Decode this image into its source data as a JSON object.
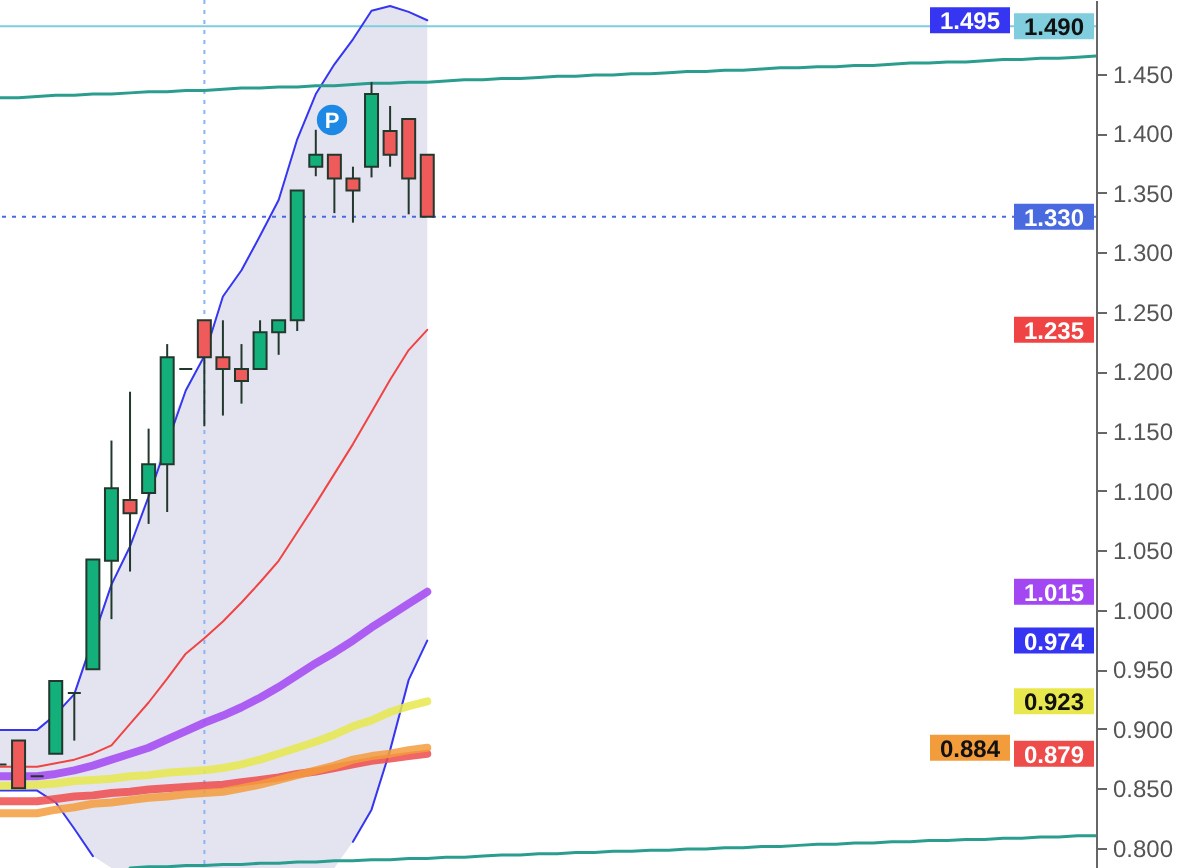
{
  "chart_data": {
    "type": "candlestick",
    "categories": [
      null,
      null,
      null,
      null,
      null,
      null,
      null,
      null,
      null,
      null,
      null,
      null,
      null,
      null,
      null,
      null,
      null,
      null,
      null,
      null,
      null,
      null,
      null,
      null,
      null,
      null,
      null,
      null,
      null,
      null,
      null,
      null,
      null,
      null,
      null,
      null,
      null,
      null,
      null,
      null,
      null,
      null,
      null,
      null,
      null,
      null,
      null,
      null,
      null,
      null,
      null,
      null,
      null,
      null,
      null,
      null,
      null,
      null,
      null,
      null
    ],
    "ohlc": [
      [
        0.87,
        0.87,
        0.87,
        0.87
      ],
      [
        0.89,
        0.89,
        0.85,
        0.85
      ],
      [
        0.86,
        0.86,
        0.86,
        0.86
      ],
      [
        0.879,
        0.94,
        0.879,
        0.94
      ],
      [
        0.93,
        0.93,
        0.89,
        0.93
      ],
      [
        0.95,
        1.042,
        0.95,
        1.042
      ],
      [
        1.041,
        1.142,
        0.992,
        1.102
      ],
      [
        1.092,
        1.183,
        1.032,
        1.081
      ],
      [
        1.098,
        1.152,
        1.072,
        1.122
      ],
      [
        1.122,
        1.223,
        1.082,
        1.212
      ],
      [
        1.202,
        1.202,
        1.202,
        1.202
      ],
      [
        1.243,
        1.243,
        1.154,
        1.212
      ],
      [
        1.212,
        1.243,
        1.163,
        1.202
      ],
      [
        1.202,
        1.223,
        1.173,
        1.192
      ],
      [
        1.202,
        1.243,
        1.202,
        1.233
      ],
      [
        1.233,
        1.243,
        1.214,
        1.243
      ],
      [
        1.243,
        1.352,
        1.234,
        1.352
      ],
      [
        1.372,
        1.403,
        1.364,
        1.382
      ],
      [
        1.382,
        1.382,
        1.333,
        1.362
      ],
      [
        1.362,
        1.372,
        1.325,
        1.352
      ],
      [
        1.372,
        1.443,
        1.363,
        1.433
      ],
      [
        1.402,
        1.423,
        1.372,
        1.382
      ],
      [
        1.412,
        1.412,
        1.332,
        1.362
      ],
      [
        1.382,
        1.382,
        1.33,
        1.33
      ],
      null,
      null,
      null,
      null,
      null,
      null,
      null,
      null,
      null,
      null,
      null,
      null,
      null,
      null,
      null,
      null,
      null,
      null,
      null,
      null,
      null,
      null,
      null,
      null,
      null,
      null,
      null,
      null,
      null,
      null,
      null,
      null,
      null,
      null,
      null,
      null
    ],
    "colors": [
      "#22382c",
      "#ef5b5b",
      "#22382c",
      "#14b07c",
      "#22382c",
      "#14b07c",
      "#14b07c",
      "#ef5b5b",
      "#14b07c",
      "#14b07c",
      "#22382c",
      "#ef5b5b",
      "#ef5b5b",
      "#ef5b5b",
      "#14b07c",
      "#14b07c",
      "#14b07c",
      "#14b07c",
      "#ef5b5b",
      "#ef5b5b",
      "#14b07c",
      "#ef5b5b",
      "#ef5b5b",
      "#ef5b5b",
      null,
      null,
      null,
      null,
      null,
      null,
      null,
      null,
      null,
      null,
      null,
      null,
      null,
      null,
      null,
      null,
      null,
      null,
      null,
      null,
      null,
      null,
      null,
      null,
      null,
      null,
      null,
      null,
      null,
      null,
      null,
      null,
      null,
      null,
      null,
      null
    ],
    "series": [
      {
        "type": "line",
        "color": "#3535f2",
        "values": [
          0.899,
          0.899,
          0.899,
          0.912,
          0.929,
          null,
          1.021,
          1.053,
          1.095,
          null,
          1.184,
          1.213,
          1.263,
          1.285,
          1.314,
          1.344,
          1.395,
          1.433,
          1.458,
          1.479,
          1.503,
          1.507,
          1.502,
          1.495,
          null,
          null,
          null,
          null,
          null,
          null,
          null,
          null,
          null,
          null,
          null,
          null,
          null,
          null,
          null,
          null,
          null,
          null,
          null,
          null,
          null,
          null,
          null,
          null,
          null,
          null,
          null,
          null,
          null,
          null,
          null,
          null,
          null,
          null,
          null,
          null
        ]
      },
      {
        "type": "line",
        "color": "#3535f2",
        "values": [
          0.848,
          0.848,
          0.848,
          0.838,
          0.816,
          0.793,
          null,
          null,
          null,
          null,
          null,
          null,
          null,
          null,
          null,
          null,
          null,
          null,
          null,
          0.805,
          0.832,
          0.882,
          0.941,
          0.974,
          null,
          null,
          null,
          null,
          null,
          null,
          null,
          null,
          null,
          null,
          null,
          null,
          null,
          null,
          null,
          null,
          null,
          null,
          null,
          null,
          null,
          null,
          null,
          null,
          null,
          null,
          null,
          null,
          null,
          null,
          null,
          null,
          null,
          null,
          null,
          null
        ]
      },
      {
        "type": "line",
        "color": "#f04444",
        "values": [
          0.868,
          0.868,
          0.868,
          0.871,
          0.874,
          0.879,
          0.886,
          0.904,
          0.922,
          0.942,
          0.963,
          0.976,
          0.99,
          1.006,
          1.023,
          1.041,
          1.065,
          1.089,
          1.114,
          1.139,
          1.166,
          1.193,
          1.218,
          1.235,
          null,
          null,
          null,
          null,
          null,
          null,
          null,
          null,
          null,
          null,
          null,
          null,
          null,
          null,
          null,
          null,
          null,
          null,
          null,
          null,
          null,
          null,
          null,
          null,
          null,
          null,
          null,
          null,
          null,
          null,
          null,
          null,
          null,
          null,
          null,
          null
        ],
        "lower": [
          0.848,
          0.848,
          0.848,
          0.838,
          0.816,
          0.793,
          0.783,
          0.783,
          0.783,
          0.783,
          0.783,
          0.783,
          0.783,
          0.783,
          0.783,
          0.783,
          0.783,
          0.783,
          0.783,
          0.805,
          0.832,
          0.882,
          0.941,
          0.974,
          null,
          null,
          null,
          null,
          null,
          null,
          null,
          null,
          null,
          null,
          null,
          null,
          null,
          null,
          null,
          null,
          null,
          null,
          null,
          null,
          null,
          null,
          null,
          null,
          null,
          null,
          null,
          null,
          null,
          null,
          null,
          null,
          null,
          null,
          null,
          null
        ],
        "upper": [
          0.899,
          0.899,
          0.899,
          0.912,
          0.929,
          0.974,
          1.021,
          1.053,
          1.095,
          1.151,
          1.184,
          1.213,
          1.263,
          1.285,
          1.314,
          1.344,
          1.395,
          1.433,
          1.458,
          1.479,
          1.503,
          1.507,
          1.502,
          1.495,
          null,
          null,
          null,
          null,
          null,
          null,
          null,
          null,
          null,
          null,
          null,
          null,
          null,
          null,
          null,
          null,
          null,
          null,
          null,
          null,
          null,
          null,
          null,
          null,
          null,
          null,
          null,
          null,
          null,
          null,
          null,
          null,
          null,
          null,
          null,
          null
        ]
      },
      {
        "type": "line",
        "color": "#a347f2",
        "values": [
          0.86,
          0.86,
          0.86,
          0.862,
          0.865,
          0.869,
          0.874,
          0.879,
          0.884,
          0.891,
          0.898,
          0.905,
          0.911,
          0.918,
          0.926,
          0.935,
          0.945,
          0.955,
          0.964,
          0.974,
          0.985,
          0.995,
          1.005,
          1.015,
          null,
          null,
          null,
          null,
          null,
          null,
          null,
          null,
          null,
          null,
          null,
          null,
          null,
          null,
          null,
          null,
          null,
          null,
          null,
          null,
          null,
          null,
          null,
          null,
          null,
          null,
          null,
          null,
          null,
          null,
          null,
          null,
          null,
          null,
          null,
          null
        ]
      },
      {
        "type": "line",
        "color": "#e8e84e",
        "values": [
          0.852,
          0.852,
          0.853,
          0.854,
          0.856,
          0.857,
          0.858,
          0.86,
          0.861,
          0.863,
          0.864,
          0.865,
          0.867,
          0.87,
          0.874,
          0.879,
          0.884,
          0.889,
          0.895,
          0.902,
          0.907,
          0.914,
          0.919,
          0.923,
          null,
          null,
          null,
          null,
          null,
          null,
          null,
          null,
          null,
          null,
          null,
          null,
          null,
          null,
          null,
          null,
          null,
          null,
          null,
          null,
          null,
          null,
          null,
          null,
          null,
          null,
          null,
          null,
          null,
          null,
          null,
          null,
          null,
          null,
          null,
          null
        ]
      },
      {
        "type": "line",
        "color": "#ee4b4b",
        "values": [
          0.839,
          0.839,
          0.839,
          0.841,
          0.843,
          0.844,
          0.846,
          0.847,
          0.849,
          0.85,
          0.851,
          0.852,
          0.853,
          0.855,
          0.857,
          0.859,
          0.862,
          0.864,
          0.867,
          0.87,
          0.873,
          0.875,
          0.877,
          0.879,
          null,
          null,
          null,
          null,
          null,
          null,
          null,
          null,
          null,
          null,
          null,
          null,
          null,
          null,
          null,
          null,
          null,
          null,
          null,
          null,
          null,
          null,
          null,
          null,
          null,
          null,
          null,
          null,
          null,
          null,
          null,
          null,
          null,
          null,
          null,
          null
        ]
      },
      {
        "type": "line",
        "color": "#f39c3c",
        "values": [
          0.829,
          0.829,
          0.829,
          0.832,
          0.834,
          0.837,
          0.838,
          0.84,
          0.842,
          0.843,
          0.845,
          0.846,
          0.847,
          0.85,
          0.853,
          0.857,
          0.861,
          0.865,
          0.869,
          0.874,
          0.877,
          0.879,
          0.882,
          0.884,
          null,
          null,
          null,
          null,
          null,
          null,
          null,
          null,
          null,
          null,
          null,
          null,
          null,
          null,
          null,
          null,
          null,
          null,
          null,
          null,
          null,
          null,
          null,
          null,
          null,
          null,
          null,
          null,
          null,
          null,
          null,
          null,
          null,
          null,
          null,
          null
        ]
      },
      {
        "type": "line",
        "color": "#2a9d8f",
        "values": [
          1.43,
          1.43,
          1.431,
          1.432,
          1.432,
          1.433,
          1.433,
          1.434,
          1.435,
          1.435,
          1.436,
          1.436,
          1.437,
          1.438,
          1.438,
          1.439,
          1.439,
          1.44,
          1.44,
          1.441,
          1.442,
          1.442,
          1.443,
          1.443,
          1.444,
          1.445,
          1.445,
          1.446,
          1.446,
          1.447,
          1.448,
          1.448,
          1.449,
          1.449,
          1.45,
          1.45,
          1.451,
          1.452,
          1.452,
          1.453,
          1.453,
          1.454,
          1.455,
          1.455,
          1.456,
          1.456,
          1.457,
          1.457,
          1.458,
          1.459,
          1.459,
          1.46,
          1.46,
          1.461,
          1.462,
          1.462,
          1.463,
          1.463,
          1.464,
          1.465
        ]
      },
      {
        "type": "line",
        "color": "#2a9d8f",
        "values": [
          null,
          null,
          null,
          null,
          null,
          null,
          null,
          0.783,
          0.784,
          0.784,
          0.785,
          0.785,
          0.786,
          0.786,
          0.787,
          0.787,
          0.788,
          0.788,
          0.789,
          0.789,
          0.79,
          0.79,
          0.791,
          0.791,
          0.792,
          0.792,
          0.793,
          0.794,
          0.794,
          0.795,
          0.795,
          0.796,
          0.796,
          0.797,
          0.797,
          0.798,
          0.798,
          0.799,
          0.799,
          0.8,
          0.8,
          0.801,
          0.801,
          0.802,
          0.803,
          0.803,
          0.804,
          0.804,
          0.805,
          0.805,
          0.806,
          0.806,
          0.807,
          0.807,
          0.808,
          0.808,
          0.809,
          0.809,
          0.81,
          0.81
        ]
      }
    ],
    "ref_lines": [
      {
        "axis": "y",
        "value": 1.49,
        "label": "1.490",
        "color": "#7fcddd"
      },
      {
        "axis": "y",
        "value": 1.33,
        "label": "1.330",
        "color": "#4a6ae0",
        "line_style": "dotted"
      }
    ],
    "annotations": [
      "P",
      {
        "text": "1.495",
        "y": 1.495
      },
      {
        "text": "1.235",
        "y": 1.235
      },
      {
        "text": "1.015",
        "y": 1.015
      },
      {
        "text": "0.974",
        "y": 0.974
      },
      {
        "text": "0.923",
        "y": 0.923
      },
      {
        "text": "0.884",
        "y": 0.884
      },
      {
        "text": "0.879",
        "y": 0.879
      }
    ],
    "ylim": [
      0.783,
      1.512
    ],
    "yticks": [
      {
        "value": 0.8,
        "label": "0.800"
      },
      {
        "value": 0.85,
        "label": "0.850"
      },
      {
        "value": 0.9,
        "label": "0.900"
      },
      {
        "value": 0.95,
        "label": "0.950"
      },
      {
        "value": 1.0,
        "label": "1.000"
      },
      {
        "value": 1.05,
        "label": "1.050"
      },
      {
        "value": 1.1,
        "label": "1.100"
      },
      {
        "value": 1.15,
        "label": "1.150"
      },
      {
        "value": 1.2,
        "label": "1.200"
      },
      {
        "value": 1.25,
        "label": "1.250"
      },
      {
        "value": 1.3,
        "label": "1.300"
      },
      {
        "value": 1.35,
        "label": "1.350"
      },
      {
        "value": 1.4,
        "label": "1.400"
      },
      {
        "value": 1.45,
        "label": "1.450"
      }
    ],
    "tick_labels": "y"
  }
}
